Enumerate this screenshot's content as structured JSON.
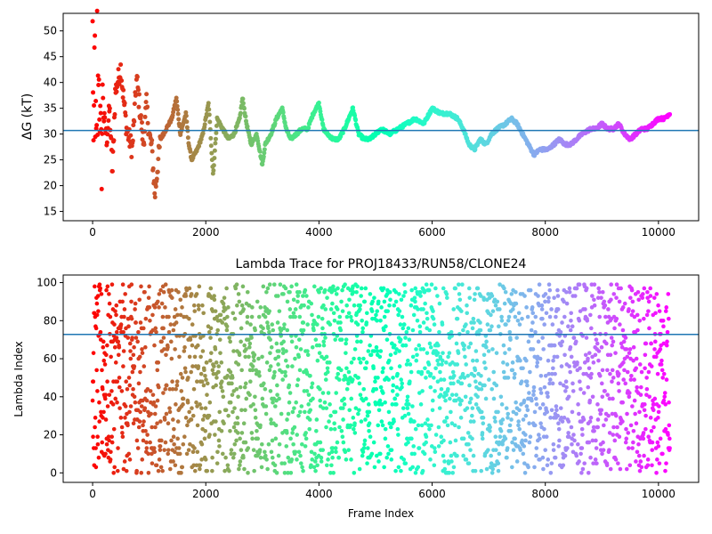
{
  "chart_data": [
    {
      "type": "scatter",
      "title": "",
      "xlabel": "",
      "ylabel": "ΔG (kT)",
      "xlim": [
        -520,
        10710
      ],
      "ylim": [
        13.2,
        53.4
      ],
      "xticks": [
        0,
        2000,
        4000,
        6000,
        8000,
        10000
      ],
      "yticks": [
        15,
        20,
        25,
        30,
        35,
        40,
        45,
        50
      ],
      "xtick_labels": [
        "0",
        "2000",
        "4000",
        "6000",
        "8000",
        "10000"
      ],
      "ytick_labels": [
        "15",
        "20",
        "25",
        "30",
        "35",
        "40",
        "45",
        "50"
      ],
      "colormap": "rainbow (red at frame 0 → violet at final frame)",
      "hline": 30.7,
      "hline_color": "#1f77b4",
      "grid": false,
      "n_frames": 10200,
      "series": [
        {
          "values_by_frame": [
            [
              0,
              50
            ],
            [
              10,
              38
            ],
            [
              20,
              20
            ],
            [
              30,
              44
            ],
            [
              40,
              47
            ],
            [
              50,
              30
            ],
            [
              60,
              33
            ],
            [
              70,
              22
            ],
            [
              80,
              51
            ],
            [
              90,
              27
            ],
            [
              100,
              45
            ],
            [
              120,
              36
            ],
            [
              140,
              31
            ],
            [
              160,
              24
            ],
            [
              180,
              40
            ],
            [
              200,
              33
            ],
            [
              250,
              29
            ],
            [
              300,
              35
            ],
            [
              350,
              22
            ],
            [
              400,
              38
            ],
            [
              500,
              43
            ],
            [
              520,
              40
            ],
            [
              600,
              31
            ],
            [
              700,
              27
            ],
            [
              780,
              41
            ],
            [
              850,
              33
            ],
            [
              900,
              28
            ],
            [
              950,
              36
            ],
            [
              1000,
              30
            ],
            [
              1050,
              27
            ],
            [
              1100,
              18
            ],
            [
              1150,
              24
            ],
            [
              1200,
              29
            ],
            [
              1300,
              31
            ],
            [
              1400,
              33
            ],
            [
              1480,
              37
            ],
            [
              1550,
              30
            ],
            [
              1650,
              34
            ],
            [
              1700,
              28
            ],
            [
              1750,
              25
            ],
            [
              1850,
              27
            ],
            [
              1950,
              30
            ],
            [
              2050,
              36
            ],
            [
              2130,
              22
            ],
            [
              2200,
              33
            ],
            [
              2300,
              31
            ],
            [
              2400,
              29
            ],
            [
              2500,
              30
            ],
            [
              2600,
              33
            ],
            [
              2650,
              37
            ],
            [
              2720,
              32
            ],
            [
              2800,
              28
            ],
            [
              2900,
              30
            ],
            [
              3000,
              24
            ],
            [
              3050,
              28
            ],
            [
              3150,
              30
            ],
            [
              3250,
              33
            ],
            [
              3350,
              35
            ],
            [
              3420,
              31
            ],
            [
              3500,
              29
            ],
            [
              3600,
              30
            ],
            [
              3700,
              31
            ],
            [
              3800,
              31
            ],
            [
              3900,
              34
            ],
            [
              4000,
              36
            ],
            [
              4080,
              31
            ],
            [
              4150,
              30
            ],
            [
              4250,
              29
            ],
            [
              4350,
              29
            ],
            [
              4450,
              31
            ],
            [
              4600,
              35
            ],
            [
              4700,
              30
            ],
            [
              4800,
              29
            ],
            [
              4900,
              29
            ],
            [
              5000,
              30
            ],
            [
              5100,
              31
            ],
            [
              5250,
              30
            ],
            [
              5400,
              31
            ],
            [
              5550,
              32
            ],
            [
              5700,
              33
            ],
            [
              5850,
              32
            ],
            [
              5950,
              34
            ],
            [
              6000,
              35
            ],
            [
              6150,
              34
            ],
            [
              6300,
              34
            ],
            [
              6450,
              33
            ],
            [
              6550,
              31
            ],
            [
              6650,
              28
            ],
            [
              6750,
              27
            ],
            [
              6850,
              29
            ],
            [
              6950,
              28
            ],
            [
              7050,
              30
            ],
            [
              7150,
              31
            ],
            [
              7300,
              32
            ],
            [
              7400,
              33
            ],
            [
              7500,
              32
            ],
            [
              7600,
              30
            ],
            [
              7700,
              28
            ],
            [
              7800,
              26
            ],
            [
              7900,
              27
            ],
            [
              8050,
              27
            ],
            [
              8150,
              28
            ],
            [
              8250,
              29
            ],
            [
              8350,
              28
            ],
            [
              8450,
              28
            ],
            [
              8550,
              29
            ],
            [
              8650,
              30
            ],
            [
              8800,
              31
            ],
            [
              8900,
              31
            ],
            [
              9000,
              32
            ],
            [
              9100,
              31
            ],
            [
              9200,
              31
            ],
            [
              9300,
              32
            ],
            [
              9400,
              30
            ],
            [
              9500,
              29
            ],
            [
              9600,
              30
            ],
            [
              9700,
              31
            ],
            [
              9800,
              31
            ],
            [
              9900,
              32
            ],
            [
              10000,
              33
            ],
            [
              10100,
              33
            ],
            [
              10200,
              34
            ]
          ]
        }
      ]
    },
    {
      "type": "scatter",
      "title": "Lambda Trace for PROJ18433/RUN58/CLONE24",
      "xlabel": "Frame Index",
      "ylabel": "Lambda Index",
      "xlim": [
        -520,
        10710
      ],
      "ylim": [
        -5,
        104
      ],
      "xticks": [
        0,
        2000,
        4000,
        6000,
        8000,
        10000
      ],
      "yticks": [
        0,
        20,
        40,
        60,
        80,
        100
      ],
      "xtick_labels": [
        "0",
        "2000",
        "4000",
        "6000",
        "8000",
        "10000"
      ],
      "ytick_labels": [
        "0",
        "20",
        "40",
        "60",
        "80",
        "100"
      ],
      "colormap": "rainbow (red at frame 0 → violet at final frame)",
      "hline": 72.8,
      "hline_color": "#1f77b4",
      "grid": false,
      "n_frames": 10200,
      "value_range": [
        0,
        99
      ],
      "note_points": "dense scatter of lambda index per frame across full range 0–99"
    }
  ]
}
